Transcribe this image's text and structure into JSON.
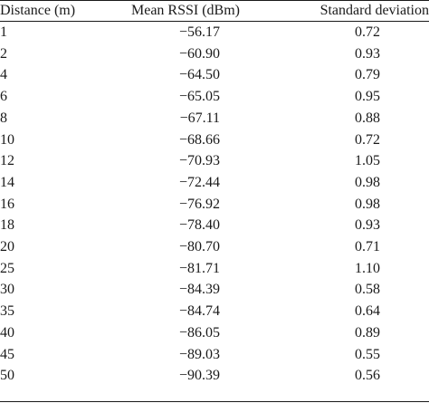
{
  "table": {
    "headers": {
      "distance": "Distance (m)",
      "mean_rssi": "Mean RSSI (dBm)",
      "std_dev": "Standard deviation"
    },
    "rows": [
      {
        "distance": "1",
        "mean_rssi": "−56.17",
        "std_dev": "0.72"
      },
      {
        "distance": "2",
        "mean_rssi": "−60.90",
        "std_dev": "0.93"
      },
      {
        "distance": "4",
        "mean_rssi": "−64.50",
        "std_dev": "0.79"
      },
      {
        "distance": "6",
        "mean_rssi": "−65.05",
        "std_dev": "0.95"
      },
      {
        "distance": "8",
        "mean_rssi": "−67.11",
        "std_dev": "0.88"
      },
      {
        "distance": "10",
        "mean_rssi": "−68.66",
        "std_dev": "0.72"
      },
      {
        "distance": "12",
        "mean_rssi": "−70.93",
        "std_dev": "1.05"
      },
      {
        "distance": "14",
        "mean_rssi": "−72.44",
        "std_dev": "0.98"
      },
      {
        "distance": "16",
        "mean_rssi": "−76.92",
        "std_dev": "0.98"
      },
      {
        "distance": "18",
        "mean_rssi": "−78.40",
        "std_dev": "0.93"
      },
      {
        "distance": "20",
        "mean_rssi": "−80.70",
        "std_dev": "0.71"
      },
      {
        "distance": "25",
        "mean_rssi": "−81.71",
        "std_dev": "1.10"
      },
      {
        "distance": "30",
        "mean_rssi": "−84.39",
        "std_dev": "0.58"
      },
      {
        "distance": "35",
        "mean_rssi": "−84.74",
        "std_dev": "0.64"
      },
      {
        "distance": "40",
        "mean_rssi": "−86.05",
        "std_dev": "0.89"
      },
      {
        "distance": "45",
        "mean_rssi": "−89.03",
        "std_dev": "0.55"
      },
      {
        "distance": "50",
        "mean_rssi": "−90.39",
        "std_dev": "0.56"
      }
    ]
  }
}
